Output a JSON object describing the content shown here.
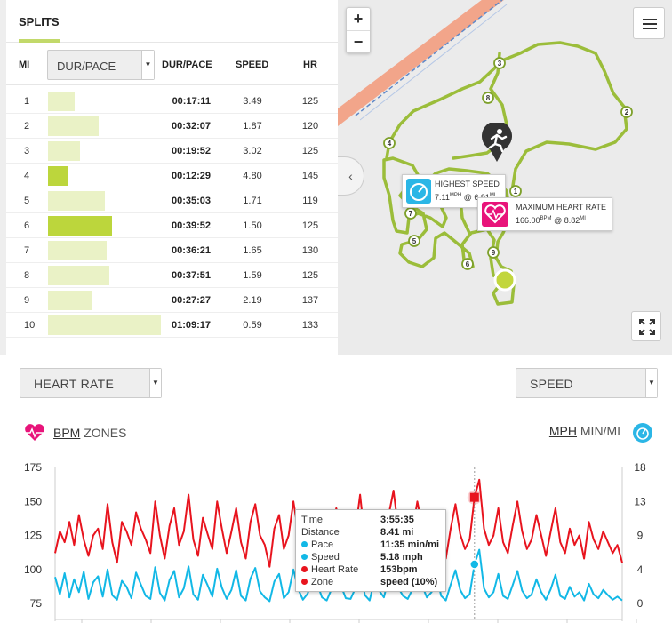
{
  "splits": {
    "tab_label": "SPLITS",
    "columns": {
      "mi": "MI",
      "select": "DUR/PACE",
      "dur_pace": "DUR/PACE",
      "speed": "SPEED",
      "hr": "HR"
    },
    "rows": [
      {
        "mi": "1",
        "dur": "00:17:11",
        "speed": "3.49",
        "hr": "125",
        "bar": 0.24,
        "highlight": false
      },
      {
        "mi": "2",
        "dur": "00:32:07",
        "speed": "1.87",
        "hr": "120",
        "bar": 0.45,
        "highlight": false
      },
      {
        "mi": "3",
        "dur": "00:19:52",
        "speed": "3.02",
        "hr": "125",
        "bar": 0.28,
        "highlight": false
      },
      {
        "mi": "4",
        "dur": "00:12:29",
        "speed": "4.80",
        "hr": "145",
        "bar": 0.17,
        "highlight": true
      },
      {
        "mi": "5",
        "dur": "00:35:03",
        "speed": "1.71",
        "hr": "119",
        "bar": 0.5,
        "highlight": false
      },
      {
        "mi": "6",
        "dur": "00:39:52",
        "speed": "1.50",
        "hr": "125",
        "bar": 0.57,
        "highlight": true
      },
      {
        "mi": "7",
        "dur": "00:36:21",
        "speed": "1.65",
        "hr": "130",
        "bar": 0.52,
        "highlight": false
      },
      {
        "mi": "8",
        "dur": "00:37:51",
        "speed": "1.59",
        "hr": "125",
        "bar": 0.54,
        "highlight": false
      },
      {
        "mi": "9",
        "dur": "00:27:27",
        "speed": "2.19",
        "hr": "137",
        "bar": 0.39,
        "highlight": false
      },
      {
        "mi": "10",
        "dur": "01:09:17",
        "speed": "0.59",
        "hr": "133",
        "bar": 1.0,
        "highlight": false
      }
    ]
  },
  "map": {
    "zoom_in": "+",
    "zoom_out": "−",
    "markers": [
      "1",
      "2",
      "3",
      "4",
      "5",
      "6",
      "7",
      "8",
      "9"
    ],
    "highest_speed": {
      "title": "HIGHEST SPEED",
      "value": "7.11",
      "unit": "MPH",
      "at": "@ 6.91",
      "at_unit": "MI"
    },
    "max_hr": {
      "title": "MAXIMUM HEART RATE",
      "value": "166.00",
      "unit": "BPM",
      "at": "@ 8.82",
      "at_unit": "MI"
    }
  },
  "chart_controls": {
    "left_select": "HEART RATE",
    "right_select": "SPEED",
    "left_units": {
      "active": "BPM",
      "other": "ZONES"
    },
    "right_units": {
      "active": "MPH",
      "other": "MIN/MI"
    }
  },
  "chart_data": {
    "type": "line",
    "left_axis": {
      "ticks": [
        175,
        150,
        125,
        100,
        75
      ],
      "ylim": [
        75,
        175
      ]
    },
    "right_axis": {
      "ticks": [
        18,
        13,
        9,
        4,
        0
      ],
      "ylim": [
        0,
        18
      ]
    },
    "series": [
      {
        "name": "Heart Rate",
        "color": "#e8141e",
        "axis": "left",
        "values": [
          112,
          128,
          120,
          135,
          118,
          140,
          122,
          110,
          125,
          130,
          115,
          148,
          120,
          105,
          135,
          128,
          118,
          142,
          130,
          122,
          112,
          150,
          125,
          108,
          132,
          145,
          118,
          128,
          155,
          122,
          110,
          138,
          126,
          115,
          150,
          130,
          112,
          128,
          145,
          120,
          108,
          135,
          148,
          125,
          118,
          102,
          130,
          140,
          115,
          125,
          150,
          128,
          110,
          122,
          140,
          132,
          118,
          108,
          126,
          145,
          130,
          115,
          112,
          128,
          155,
          122,
          108,
          135,
          125,
          118,
          140,
          158,
          130,
          120,
          112,
          128,
          150,
          132,
          118,
          125,
          142,
          120,
          108,
          130,
          148,
          126,
          115,
          122,
          153,
          166,
          130,
          118,
          125,
          145,
          120,
          112,
          132,
          150,
          128,
          115,
          122,
          140,
          125,
          110,
          128,
          145,
          120,
          112,
          130,
          118,
          125,
          108,
          135,
          122,
          115,
          128,
          120,
          112,
          118,
          105
        ]
      },
      {
        "name": "Speed",
        "color": "#12b8e6",
        "axis": "right",
        "values": [
          3.5,
          1.2,
          4.0,
          0.8,
          3.2,
          1.5,
          4.2,
          0.6,
          2.8,
          3.6,
          0.9,
          4.5,
          1.1,
          0.5,
          3.0,
          2.2,
          0.7,
          4.1,
          2.5,
          1.0,
          0.6,
          4.8,
          1.4,
          0.4,
          3.1,
          4.3,
          0.8,
          2.0,
          4.9,
          1.2,
          0.5,
          3.8,
          2.4,
          0.9,
          4.6,
          2.1,
          0.6,
          1.8,
          4.4,
          1.0,
          0.4,
          3.3,
          4.7,
          1.6,
          0.8,
          0.3,
          2.9,
          3.9,
          0.7,
          1.5,
          4.5,
          1.9,
          0.5,
          1.3,
          3.6,
          2.6,
          0.8,
          0.4,
          1.9,
          4.2,
          2.3,
          0.7,
          0.6,
          2.0,
          4.8,
          1.1,
          0.4,
          3.0,
          1.7,
          0.8,
          3.4,
          5.0,
          2.1,
          1.0,
          0.6,
          1.9,
          4.6,
          2.4,
          0.8,
          1.5,
          3.7,
          1.0,
          0.4,
          2.5,
          4.4,
          1.8,
          0.7,
          1.2,
          5.18,
          7.11,
          2.0,
          0.8,
          1.5,
          3.9,
          1.0,
          0.6,
          2.4,
          4.3,
          1.7,
          0.7,
          1.2,
          3.2,
          1.5,
          0.5,
          1.9,
          3.8,
          1.0,
          0.6,
          2.2,
          0.9,
          1.5,
          0.4,
          2.6,
          1.2,
          0.7,
          1.8,
          1.1,
          0.5,
          0.9,
          0.4
        ]
      }
    ],
    "cursor_index": 88
  },
  "tooltip": {
    "rows": [
      {
        "key": "Time",
        "value": "3:55:35",
        "dot": ""
      },
      {
        "key": "Distance",
        "value": "8.41 mi",
        "dot": ""
      },
      {
        "key": "Pace",
        "value": "11:35 min/mi",
        "dot": "#12b8e6"
      },
      {
        "key": "Speed",
        "value": "5.18 mph",
        "dot": "#12b8e6"
      },
      {
        "key": "Heart Rate",
        "value": "153bpm",
        "dot": "#e8141e"
      },
      {
        "key": "Zone",
        "value": "speed (10%)",
        "dot": "#e8141e"
      }
    ]
  },
  "colors": {
    "accent_green": "#bcd63c",
    "route_green": "#9bbd3a",
    "hr_pink": "#e8147a",
    "speed_blue": "#2bb6e6"
  }
}
